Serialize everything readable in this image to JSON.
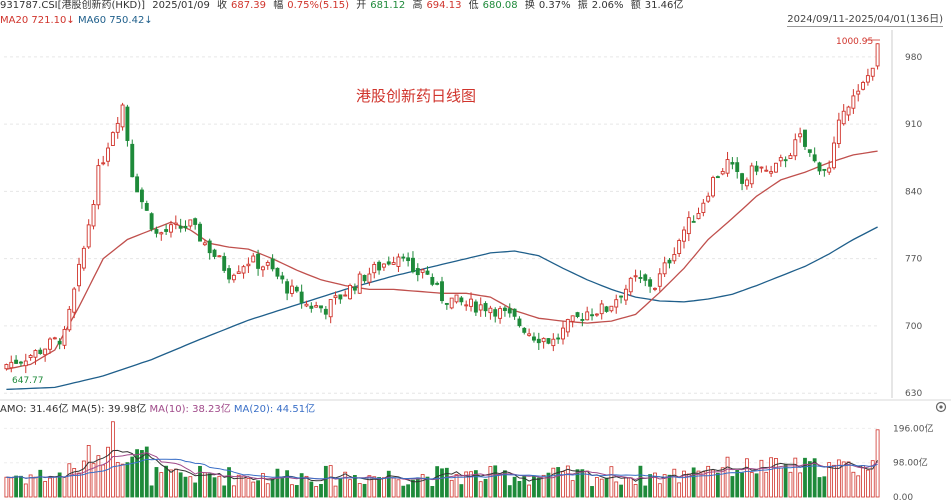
{
  "header": {
    "code": "931787.CSI[港股创新药(HKD)]",
    "date": "2025/01/09",
    "close_label": "收",
    "close": "687.39",
    "change_label": "幅",
    "change": "0.75%(5.15)",
    "open_label": "开",
    "open": "681.12",
    "high_label": "高",
    "high": "694.13",
    "low_label": "低",
    "low": "680.08",
    "turnover_label": "换",
    "turnover": "0.37%",
    "amp_label": "振",
    "amp": "2.06%",
    "amount_label": "额",
    "amount": "31.46亿"
  },
  "ma_legend": {
    "ma20": "MA20  721.10↓",
    "ma60": "MA60  750.42↓"
  },
  "range_label": "2024/09/11-2025/04/01(136日)",
  "vol_legend": {
    "amo": "AMO: 31.46亿",
    "ma5": "MA(5): 39.98亿",
    "ma10": "MA(10): 38.23亿",
    "ma20": "MA(20): 44.51亿"
  },
  "colors": {
    "up": "#d0342c",
    "down": "#1e8a3a",
    "ma20": "#c0504d",
    "ma60": "#1f5f8b",
    "vol_ma5": "#333333",
    "vol_ma10": "#a04a8a",
    "vol_ma20": "#3a6fc7"
  },
  "chart_data": {
    "type": "candlestick",
    "title": "港股创新药日线图",
    "y_ticks": [
      630,
      700,
      770,
      840,
      910,
      980
    ],
    "ylim": [
      625,
      1008
    ],
    "vol_ticks": [
      "196.00亿",
      "98.00亿",
      "0.00"
    ],
    "vol_ylim": [
      0,
      220
    ],
    "max_label": "1000.95",
    "min_label": "647.77",
    "ma20_points": [
      [
        0,
        655
      ],
      [
        5,
        660
      ],
      [
        10,
        675
      ],
      [
        15,
        720
      ],
      [
        20,
        770
      ],
      [
        25,
        790
      ],
      [
        30,
        800
      ],
      [
        34,
        808
      ],
      [
        38,
        800
      ],
      [
        42,
        786
      ],
      [
        46,
        782
      ],
      [
        50,
        780
      ],
      [
        55,
        770
      ],
      [
        60,
        758
      ],
      [
        65,
        748
      ],
      [
        70,
        742
      ],
      [
        75,
        738
      ],
      [
        80,
        738
      ],
      [
        85,
        736
      ],
      [
        90,
        734
      ],
      [
        95,
        734
      ],
      [
        100,
        730
      ],
      [
        105,
        716
      ],
      [
        110,
        708
      ],
      [
        115,
        705
      ],
      [
        120,
        703
      ],
      [
        125,
        705
      ],
      [
        130,
        712
      ],
      [
        135,
        735
      ],
      [
        140,
        760
      ],
      [
        145,
        790
      ],
      [
        150,
        812
      ],
      [
        155,
        835
      ],
      [
        160,
        852
      ],
      [
        165,
        860
      ],
      [
        170,
        870
      ],
      [
        175,
        878
      ],
      [
        180,
        882
      ]
    ],
    "ma60_points": [
      [
        0,
        634
      ],
      [
        10,
        636
      ],
      [
        20,
        648
      ],
      [
        30,
        665
      ],
      [
        40,
        686
      ],
      [
        50,
        706
      ],
      [
        60,
        722
      ],
      [
        70,
        738
      ],
      [
        80,
        752
      ],
      [
        90,
        764
      ],
      [
        100,
        776
      ],
      [
        105,
        778
      ],
      [
        110,
        773
      ],
      [
        115,
        760
      ],
      [
        120,
        748
      ],
      [
        125,
        738
      ],
      [
        130,
        730
      ],
      [
        135,
        726
      ],
      [
        140,
        725
      ],
      [
        145,
        728
      ],
      [
        150,
        733
      ],
      [
        155,
        742
      ],
      [
        160,
        752
      ],
      [
        165,
        762
      ],
      [
        170,
        775
      ],
      [
        175,
        790
      ],
      [
        180,
        803
      ]
    ]
  }
}
